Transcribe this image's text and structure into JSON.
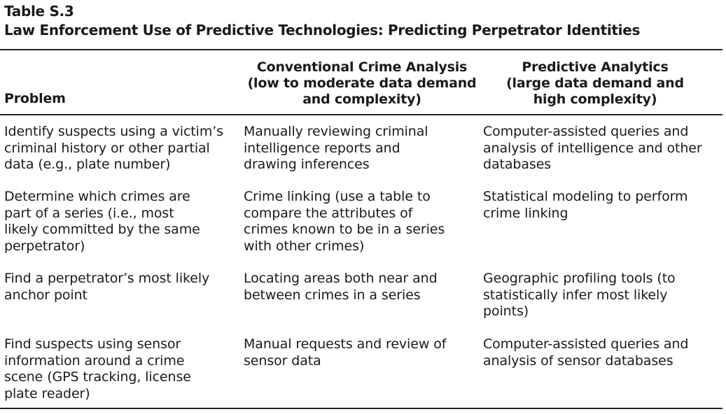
{
  "table": {
    "label": "Table S.3",
    "title": "Law Enforcement Use of Predictive Technologies: Predicting Perpetrator Identities",
    "headers": [
      "Problem",
      "Conventional Crime Analysis\n(low to moderate data demand\nand complexity)",
      "Predictive Analytics\n(large data demand and\nhigh complexity)"
    ],
    "rows": [
      [
        "Identify suspects using a victim’s\ncriminal history or other partial\ndata (e.g., plate number)",
        "Manually reviewing criminal\nintelligence reports and\ndrawing inferences",
        "Computer-assisted queries and\nanalysis of intelligence and other\ndatabases"
      ],
      [
        "Determine which crimes are\npart of a series (i.e., most\nlikely committed by the same\nperpetrator)",
        "Crime linking (use a table to\ncompare the attributes of\ncrimes known to be in a series\nwith other crimes)",
        "Statistical modeling to perform\ncrime linking"
      ],
      [
        "Find a perpetrator’s most likely\nanchor point",
        "Locating areas both near and\nbetween crimes in a series",
        "Geographic profiling tools (to\nstatistically infer most likely\npoints)"
      ],
      [
        "Find suspects using sensor\ninformation around a crime\nscene (GPS tracking, license\nplate reader)",
        "Manual requests and review of\nsensor data",
        "Computer-assisted queries and\nanalysis of sensor databases"
      ]
    ]
  }
}
